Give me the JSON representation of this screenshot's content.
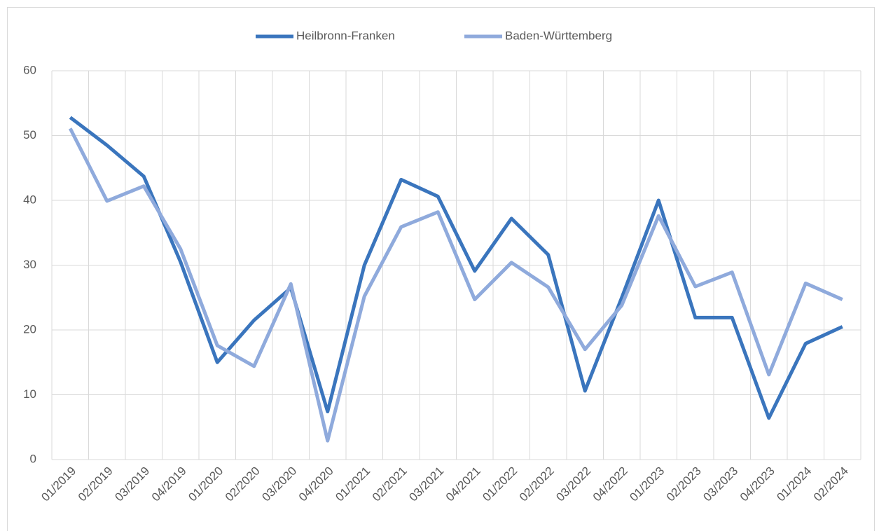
{
  "chart_data": {
    "type": "line",
    "categories": [
      "01/2019",
      "02/2019",
      "03/2019",
      "04/2019",
      "01/2020",
      "02/2020",
      "03/2020",
      "04/2020",
      "01/2021",
      "02/2021",
      "03/2021",
      "04/2021",
      "01/2022",
      "02/2022",
      "03/2022",
      "04/2022",
      "01/2023",
      "02/2023",
      "03/2023",
      "04/2023",
      "01/2024",
      "02/2024"
    ],
    "series": [
      {
        "name": "Heilbronn-Franken",
        "color": "#3a75bd",
        "values": [
          52.8,
          48.5,
          43.7,
          30.5,
          15.0,
          21.5,
          26.5,
          7.4,
          30.0,
          43.2,
          40.6,
          29.1,
          37.2,
          31.6,
          10.6,
          25.0,
          40.0,
          21.9,
          21.9,
          6.4,
          17.9,
          20.5
        ]
      },
      {
        "name": "Baden-Württemberg",
        "color": "#8faadc",
        "values": [
          51.1,
          39.9,
          42.2,
          32.5,
          17.6,
          14.4,
          27.1,
          2.9,
          25.2,
          35.9,
          38.2,
          24.7,
          30.4,
          26.6,
          17.0,
          23.8,
          37.6,
          26.7,
          28.9,
          13.1,
          27.2,
          24.7
        ]
      }
    ],
    "ylim": [
      0,
      60
    ],
    "yticks": [
      0,
      10,
      20,
      30,
      40,
      50,
      60
    ],
    "grid": true,
    "legend": "top"
  }
}
